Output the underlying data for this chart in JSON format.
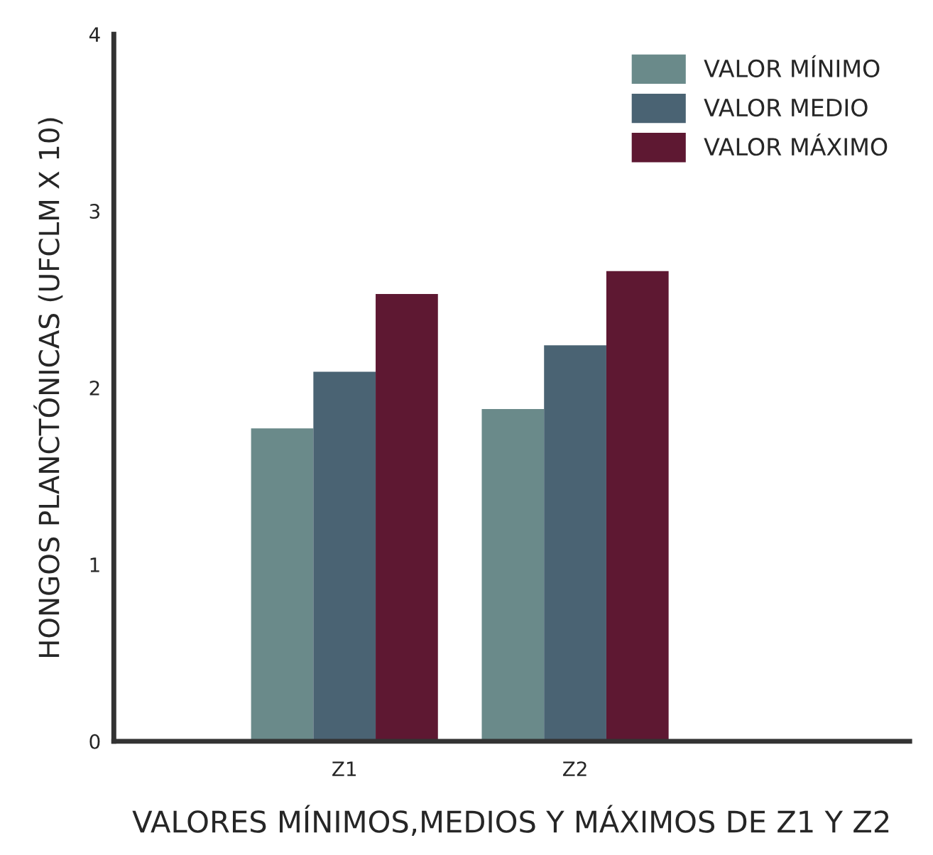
{
  "chart_data": {
    "type": "bar",
    "xlabel": "VALORES MÍNIMOS,MEDIOS Y MÁXIMOS DE Z1 Y Z2",
    "ylabel": "HONGOS PLANCTÓNICAS (UFCLM X 10)",
    "categories": [
      "Z1",
      "Z2"
    ],
    "series": [
      {
        "name": "VALOR MÍNIMO",
        "color": "#6a8a8a",
        "values": [
          1.77,
          1.88
        ]
      },
      {
        "name": "VALOR MEDIO",
        "color": "#4a6373",
        "values": [
          2.09,
          2.24
        ]
      },
      {
        "name": "VALOR MÁXIMO",
        "color": "#5e1832",
        "values": [
          2.53,
          2.66
        ]
      }
    ],
    "ylim": [
      0,
      4
    ],
    "yticks": [
      0,
      1,
      2,
      3,
      4
    ],
    "grid": false,
    "legend": "top right"
  }
}
